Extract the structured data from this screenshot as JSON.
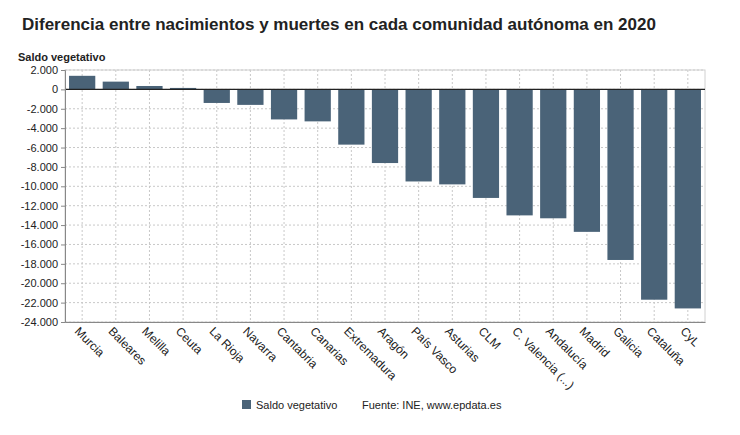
{
  "chart_data": {
    "type": "bar",
    "title": "Diferencia entre nacimientos y muertes en cada comunidad autónoma en 2020",
    "ylabel": "Saldo vegetativo",
    "source": "Fuente: INE, www.epdata.es",
    "categories": [
      "Murcia",
      "Baleares",
      "Melilla",
      "Ceuta",
      "La Rioja",
      "Navarra",
      "Cantabria",
      "Canarias",
      "Extremadura",
      "Aragón",
      "País Vasco",
      "Asturias",
      "CLM",
      "C. Valencia (...)",
      "Andalucía",
      "Madrid",
      "Galicia",
      "Cataluña",
      "CyL"
    ],
    "series": [
      {
        "name": "Saldo vegetativo",
        "color": "#4a6378",
        "values": [
          1400,
          800,
          350,
          150,
          -1400,
          -1600,
          -3100,
          -3300,
          -5700,
          -7600,
          -9500,
          -9800,
          -11200,
          -13000,
          -13300,
          -14700,
          -17600,
          -21700,
          -22600
        ]
      }
    ],
    "ylim": [
      -24000,
      2000
    ],
    "yticks": [
      {
        "value": -24000,
        "label": "-24.000"
      },
      {
        "value": -22000,
        "label": "-22.000"
      },
      {
        "value": -20000,
        "label": "-20.000"
      },
      {
        "value": -18000,
        "label": "-18.000"
      },
      {
        "value": -16000,
        "label": "-16.000"
      },
      {
        "value": -14000,
        "label": "-14.000"
      },
      {
        "value": -12000,
        "label": "-12.000"
      },
      {
        "value": -10000,
        "label": "-10.000"
      },
      {
        "value": -8000,
        "label": "-8.000"
      },
      {
        "value": -6000,
        "label": "-6.000"
      },
      {
        "value": -4000,
        "label": "-4.000"
      },
      {
        "value": -2000,
        "label": "-2.000"
      },
      0,
      {
        "value": 2000,
        "label": "2.000"
      }
    ],
    "grid": true,
    "legend": "bottom"
  }
}
